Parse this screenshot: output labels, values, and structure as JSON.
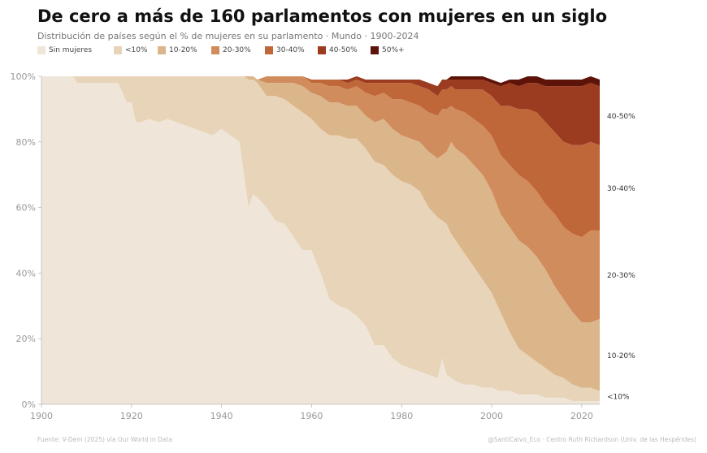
{
  "title": "De cero a más de 160 parlamentos con mujeres en un siglo",
  "subtitle": "Distribución de países según el % de mujeres en su parlamento · Mundo · 1900-2024",
  "source_left": "Fuente: V-Dem (2025) vía Our World in Data",
  "source_right": "@SantiCalvo_Eco · Centro Ruth Richardson (Univ. de las Hespérides)",
  "chart_data": {
    "type": "area",
    "stacked": true,
    "percent": true,
    "x": [
      1900,
      1902,
      1904,
      1906,
      1907,
      1908,
      1909,
      1910,
      1912,
      1914,
      1916,
      1917,
      1918,
      1919,
      1920,
      1921,
      1922,
      1924,
      1926,
      1928,
      1930,
      1932,
      1934,
      1936,
      1938,
      1940,
      1942,
      1944,
      1945,
      1946,
      1947,
      1948,
      1950,
      1952,
      1954,
      1956,
      1958,
      1960,
      1962,
      1964,
      1966,
      1968,
      1970,
      1972,
      1974,
      1976,
      1978,
      1980,
      1982,
      1984,
      1986,
      1988,
      1989,
      1990,
      1991,
      1992,
      1994,
      1996,
      1998,
      2000,
      2002,
      2004,
      2006,
      2008,
      2010,
      2012,
      2014,
      2016,
      2018,
      2020,
      2022,
      2024
    ],
    "xlim": [
      1900,
      2024
    ],
    "x_ticks": [
      "1900",
      "1920",
      "1940",
      "1960",
      "1980",
      "2000",
      "2020"
    ],
    "ylim": [
      0,
      100
    ],
    "y_ticks": [
      "0%",
      "20%",
      "40%",
      "60%",
      "80%",
      "100%"
    ],
    "grid": false,
    "legend_position": "top",
    "series": [
      {
        "name": "Sin mujeres",
        "color": "#efe6d9",
        "label": "",
        "values": [
          100,
          100,
          100,
          100,
          100,
          98,
          98,
          98,
          98,
          98,
          98,
          98,
          95,
          92,
          92,
          86,
          86,
          87,
          86,
          87,
          86,
          85,
          84,
          83,
          82,
          84,
          82,
          80,
          70,
          60,
          64,
          63,
          60,
          56,
          55,
          51,
          47,
          47,
          40,
          32,
          30,
          29,
          27,
          24,
          18,
          18,
          14,
          12,
          11,
          10,
          9,
          8,
          14,
          9,
          8,
          7,
          6,
          6,
          5,
          5,
          4,
          4,
          3,
          3,
          3,
          2,
          2,
          2,
          1,
          1,
          1,
          1
        ]
      },
      {
        "name": "<10%",
        "color": "#e8d4b9",
        "label": "<10%",
        "values": [
          0,
          0,
          0,
          0,
          0,
          2,
          2,
          2,
          2,
          2,
          2,
          2,
          5,
          8,
          8,
          14,
          14,
          13,
          14,
          13,
          14,
          15,
          16,
          17,
          18,
          16,
          18,
          20,
          30,
          39,
          35,
          35,
          34,
          38,
          38,
          40,
          42,
          40,
          44,
          50,
          52,
          52,
          54,
          54,
          56,
          55,
          56,
          56,
          56,
          55,
          51,
          49,
          42,
          46,
          44,
          43,
          40,
          36,
          33,
          29,
          24,
          18,
          14,
          12,
          10,
          9,
          7,
          6,
          5,
          4,
          4,
          3
        ]
      },
      {
        "name": "10-20%",
        "color": "#dcb68b",
        "label": "10-20%",
        "values": [
          0,
          0,
          0,
          0,
          0,
          0,
          0,
          0,
          0,
          0,
          0,
          0,
          0,
          0,
          0,
          0,
          0,
          0,
          0,
          0,
          0,
          0,
          0,
          0,
          0,
          0,
          0,
          0,
          0,
          1,
          1,
          1,
          4,
          4,
          5,
          7,
          8,
          8,
          10,
          10,
          10,
          10,
          10,
          10,
          12,
          14,
          14,
          14,
          14,
          15,
          17,
          18,
          20,
          22,
          28,
          28,
          30,
          31,
          32,
          31,
          30,
          32,
          33,
          33,
          32,
          30,
          27,
          24,
          22,
          20,
          20,
          22
        ]
      },
      {
        "name": "20-30%",
        "color": "#d08c5c",
        "label": "20-30%",
        "values": [
          0,
          0,
          0,
          0,
          0,
          0,
          0,
          0,
          0,
          0,
          0,
          0,
          0,
          0,
          0,
          0,
          0,
          0,
          0,
          0,
          0,
          0,
          0,
          0,
          0,
          0,
          0,
          0,
          0,
          0,
          0,
          0,
          2,
          2,
          2,
          2,
          3,
          3,
          4,
          5,
          5,
          5,
          6,
          7,
          8,
          8,
          9,
          11,
          11,
          11,
          12,
          13,
          14,
          13,
          11,
          12,
          13,
          14,
          15,
          17,
          18,
          19,
          20,
          20,
          20,
          20,
          22,
          22,
          24,
          26,
          28,
          27
        ]
      },
      {
        "name": "30-40%",
        "color": "#c0673a",
        "label": "30-40%",
        "values": [
          0,
          0,
          0,
          0,
          0,
          0,
          0,
          0,
          0,
          0,
          0,
          0,
          0,
          0,
          0,
          0,
          0,
          0,
          0,
          0,
          0,
          0,
          0,
          0,
          0,
          0,
          0,
          0,
          0,
          0,
          0,
          0,
          0,
          0,
          0,
          0,
          0,
          1,
          1,
          2,
          2,
          2,
          2,
          3,
          4,
          3,
          5,
          5,
          6,
          6,
          7,
          6,
          6,
          6,
          6,
          6,
          7,
          9,
          11,
          12,
          15,
          18,
          20,
          22,
          24,
          25,
          25,
          26,
          27,
          28,
          27,
          26
        ]
      },
      {
        "name": "40-50%",
        "color": "#9b3b1f",
        "label": "40-50%",
        "values": [
          0,
          0,
          0,
          0,
          0,
          0,
          0,
          0,
          0,
          0,
          0,
          0,
          0,
          0,
          0,
          0,
          0,
          0,
          0,
          0,
          0,
          0,
          0,
          0,
          0,
          0,
          0,
          0,
          0,
          0,
          0,
          0,
          0,
          0,
          0,
          0,
          0,
          0,
          0,
          0,
          0,
          1,
          1,
          1,
          1,
          1,
          1,
          1,
          1,
          2,
          2,
          3,
          3,
          3,
          2,
          3,
          3,
          3,
          3,
          4,
          6,
          7,
          7,
          8,
          9,
          11,
          14,
          17,
          18,
          18,
          18,
          18
        ]
      },
      {
        "name": "50%+",
        "color": "#5e1308",
        "label": "",
        "values": [
          0,
          0,
          0,
          0,
          0,
          0,
          0,
          0,
          0,
          0,
          0,
          0,
          0,
          0,
          0,
          0,
          0,
          0,
          0,
          0,
          0,
          0,
          0,
          0,
          0,
          0,
          0,
          0,
          0,
          0,
          0,
          0,
          0,
          0,
          0,
          0,
          0,
          0,
          0,
          0,
          0,
          0,
          0,
          0,
          0,
          0,
          0,
          0,
          0,
          0,
          0,
          0,
          0,
          0,
          1,
          1,
          1,
          1,
          1,
          1,
          1,
          1,
          2,
          2,
          2,
          2,
          2,
          2,
          2,
          2,
          2,
          2
        ]
      }
    ]
  }
}
